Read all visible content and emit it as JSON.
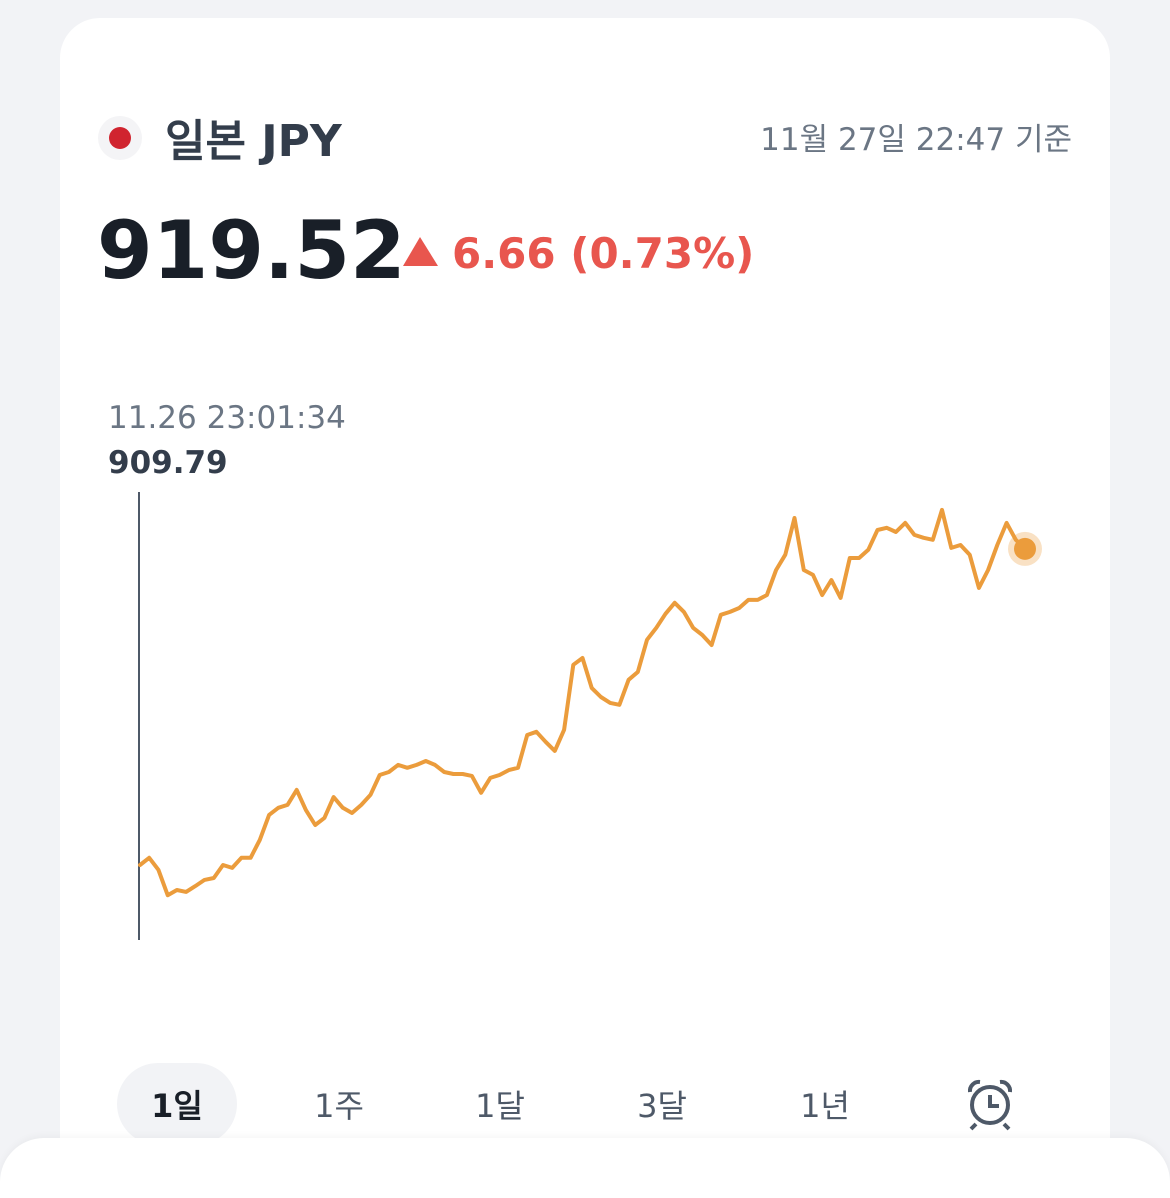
{
  "header": {
    "title": "일본 JPY",
    "timestamp": "11월 27일 22:47 기준",
    "change": "6.66 (0.73%)"
  },
  "chart_data": {
    "type": "line",
    "color": "#eb9c3c",
    "ylim": [
      907.48,
      921.64
    ],
    "tooltip_time": "11.26 23:01:34",
    "values": [
      909.79,
      910.01,
      909.64,
      908.86,
      909.02,
      908.96,
      909.14,
      909.33,
      909.39,
      909.79,
      909.7,
      910.01,
      910.01,
      910.56,
      911.33,
      911.55,
      911.64,
      912.1,
      911.48,
      911.02,
      911.24,
      911.88,
      911.55,
      911.39,
      911.64,
      911.95,
      912.56,
      912.65,
      912.87,
      912.78,
      912.87,
      912.99,
      912.87,
      912.65,
      912.59,
      912.59,
      912.53,
      912.01,
      912.47,
      912.56,
      912.71,
      912.78,
      913.79,
      913.89,
      913.58,
      913.3,
      913.95,
      915.95,
      916.16,
      915.24,
      914.96,
      914.78,
      914.72,
      915.49,
      915.73,
      916.72,
      917.09,
      917.52,
      917.86,
      917.58,
      917.09,
      916.87,
      916.56,
      917.49,
      917.58,
      917.7,
      917.95,
      917.95,
      918.1,
      918.87,
      919.34,
      920.47,
      918.87,
      918.72,
      918.1,
      918.56,
      918.01,
      919.24,
      919.24,
      919.49,
      920.1,
      920.17,
      920.04,
      920.32,
      919.95,
      919.86,
      919.8,
      920.72,
      919.55,
      919.64,
      919.34,
      918.32,
      918.87,
      919.64,
      920.32,
      919.8,
      919.52
    ]
  },
  "tabs": [
    "1일",
    "1주",
    "1달",
    "3달",
    "1년"
  ]
}
